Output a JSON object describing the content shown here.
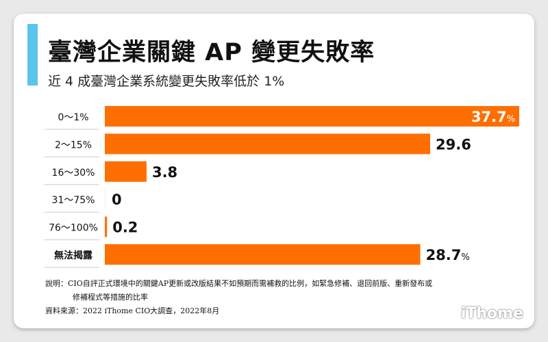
{
  "title": "臺灣企業關鍵 AP 變更失敗率",
  "subtitle": "近 4 成臺灣企業系統變更失敗率低於 1%",
  "chart_data": {
    "type": "bar",
    "orientation": "horizontal",
    "categories": [
      "0～1%",
      "2～15%",
      "16～30%",
      "31～75%",
      "76～100%",
      "無法揭露"
    ],
    "values": [
      37.7,
      29.6,
      3.8,
      0,
      0.2,
      28.7
    ],
    "data_labels": [
      "37.7",
      "29.6",
      "3.8",
      "0",
      "0.2",
      "28.7"
    ],
    "label_units": [
      "%",
      "",
      "",
      "",
      "",
      "%"
    ],
    "xlim": [
      0,
      37.7
    ],
    "bar_color": "#ff6f00",
    "grid": false
  },
  "notes": {
    "line1": "說明：CIO自評正式環境中的關鍵AP更新或改版結果不如預期而需補救的比例，如緊急修補、退回前版、重新發布或",
    "line2": "修補程式等措施的比率",
    "source": "資料來源：2022 iThome CIO大調查，2022年8月"
  },
  "logo": "iThome",
  "colors": {
    "accent": "#5bc4ec",
    "bar": "#ff6f00"
  }
}
